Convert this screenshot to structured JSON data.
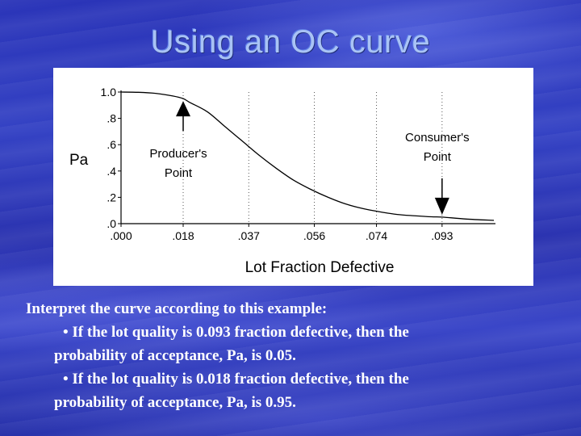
{
  "slide": {
    "title": "Using an OC curve"
  },
  "chart_data": {
    "type": "line",
    "ylabel": "Pa",
    "xlabel": "Lot Fraction Defective",
    "ylim": [
      0,
      1.0
    ],
    "xlim": [
      0,
      0.108
    ],
    "y_ticks": [
      {
        "value": 1.0,
        "label": "1.0"
      },
      {
        "value": 0.8,
        "label": ".8"
      },
      {
        "value": 0.6,
        "label": ".6"
      },
      {
        "value": 0.4,
        "label": ".4"
      },
      {
        "value": 0.2,
        "label": ".2"
      },
      {
        "value": 0.0,
        "label": ".0"
      }
    ],
    "x_ticks": [
      {
        "value": 0.0,
        "label": ".000"
      },
      {
        "value": 0.018,
        "label": ".018"
      },
      {
        "value": 0.037,
        "label": ".037"
      },
      {
        "value": 0.056,
        "label": ".056"
      },
      {
        "value": 0.074,
        "label": ".074"
      },
      {
        "value": 0.093,
        "label": ".093"
      }
    ],
    "grid": "dotted vertical",
    "series": [
      {
        "color": "#000000",
        "x": [
          0.0,
          0.005,
          0.01,
          0.015,
          0.018,
          0.02,
          0.025,
          0.03,
          0.035,
          0.04,
          0.045,
          0.05,
          0.055,
          0.06,
          0.065,
          0.07,
          0.075,
          0.08,
          0.085,
          0.09,
          0.093,
          0.1,
          0.108
        ],
        "y": [
          1.0,
          0.998,
          0.99,
          0.97,
          0.95,
          0.92,
          0.85,
          0.74,
          0.63,
          0.52,
          0.42,
          0.33,
          0.26,
          0.2,
          0.15,
          0.115,
          0.09,
          0.07,
          0.06,
          0.052,
          0.05,
          0.035,
          0.025
        ]
      }
    ],
    "annotations": [
      {
        "label_lines": [
          "Producer's",
          "Point"
        ],
        "x": 0.018,
        "y": 0.95,
        "arrow": "up"
      },
      {
        "label_lines": [
          "Consumer's",
          "Point"
        ],
        "x": 0.093,
        "y": 0.05,
        "arrow": "down"
      }
    ]
  },
  "body": {
    "intro": "Interpret the curve according to this example:",
    "bullets": [
      {
        "line1": "• If the lot quality is 0.093 fraction defective, then the",
        "line2": "probability of acceptance, Pa, is 0.05."
      },
      {
        "line1": "• If the lot quality is 0.018 fraction defective, then the",
        "line2": "probability of acceptance, Pa, is 0.95."
      }
    ]
  }
}
